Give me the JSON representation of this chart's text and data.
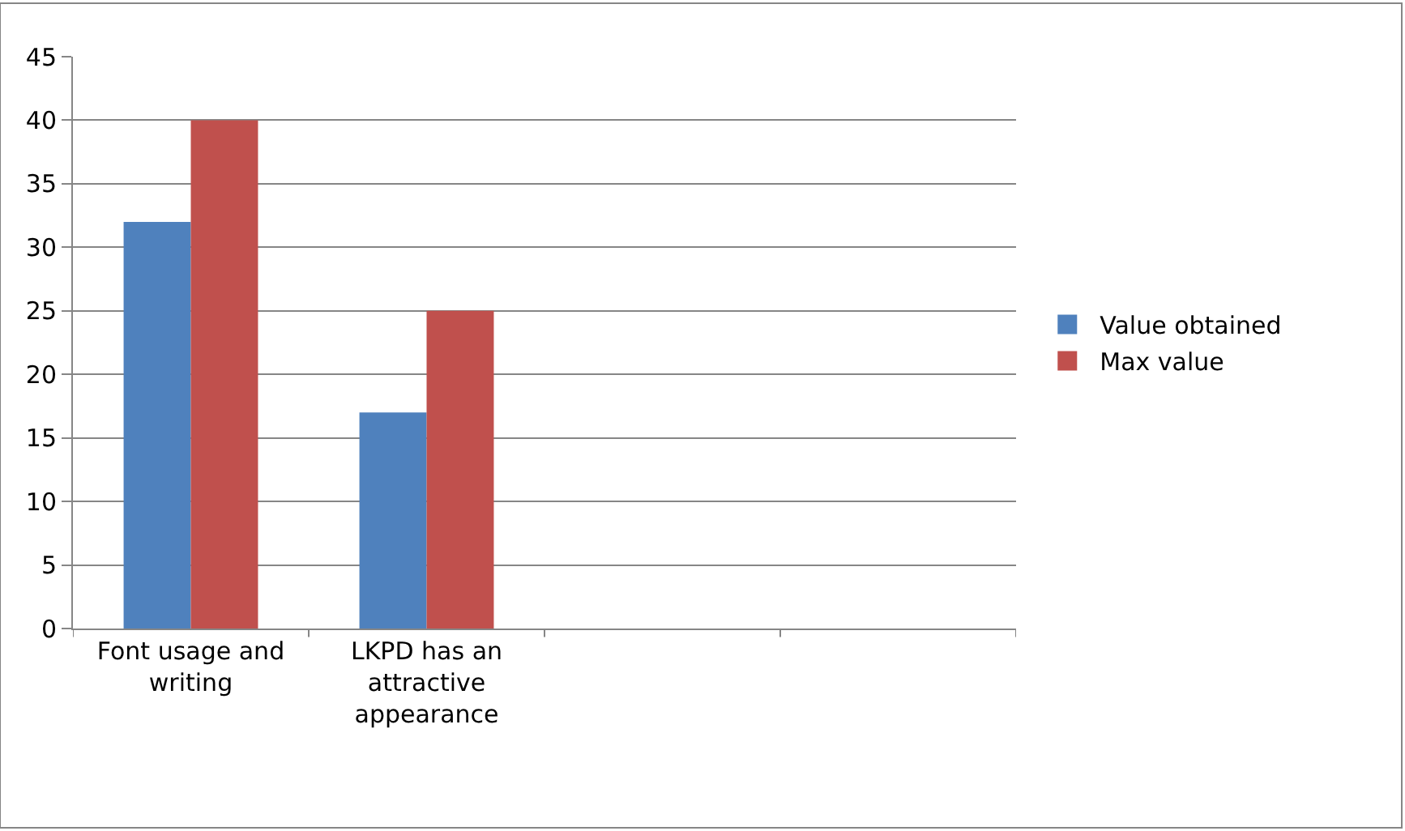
{
  "chart_data": {
    "type": "bar",
    "categories": [
      "Font usage and writing",
      "LKPD has an attractive appearance",
      null,
      null
    ],
    "series": [
      {
        "name": "Value obtained",
        "color": "#4f81bd",
        "values": [
          32,
          17,
          null,
          null
        ]
      },
      {
        "name": "Max value",
        "color": "#c0504d",
        "values": [
          40,
          25,
          null,
          null
        ]
      }
    ],
    "ylim": [
      0,
      45
    ],
    "yticks": [
      0,
      5,
      10,
      15,
      20,
      25,
      30,
      35,
      40,
      45
    ],
    "grid": "y",
    "legend": "right"
  }
}
